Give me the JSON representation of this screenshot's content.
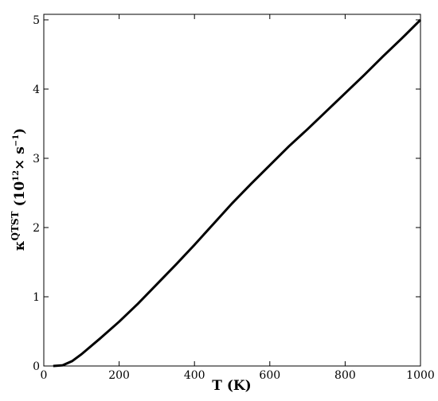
{
  "chart_data": {
    "type": "line",
    "xlabel": "T (K)",
    "ylabel_parts": [
      "κ",
      "QTST",
      " (10",
      "12",
      "× s",
      "−1",
      ")"
    ],
    "x": [
      25,
      50,
      75,
      100,
      150,
      200,
      250,
      300,
      350,
      400,
      450,
      500,
      550,
      600,
      650,
      700,
      750,
      800,
      850,
      900,
      950,
      1000
    ],
    "series": [
      {
        "color": "#000000",
        "values": [
          0,
          0.01,
          0.07,
          0.17,
          0.4,
          0.64,
          0.9,
          1.18,
          1.46,
          1.75,
          2.05,
          2.35,
          2.63,
          2.9,
          3.17,
          3.42,
          3.68,
          3.94,
          4.2,
          4.47,
          4.73,
          5.0
        ]
      }
    ],
    "xlim": [
      0,
      1000
    ],
    "xticks": [
      0,
      200,
      400,
      600,
      800,
      1000
    ],
    "ylim": [
      0,
      5.08
    ],
    "yticks": [
      0,
      1,
      2,
      3,
      4,
      5
    ],
    "grid": false
  }
}
